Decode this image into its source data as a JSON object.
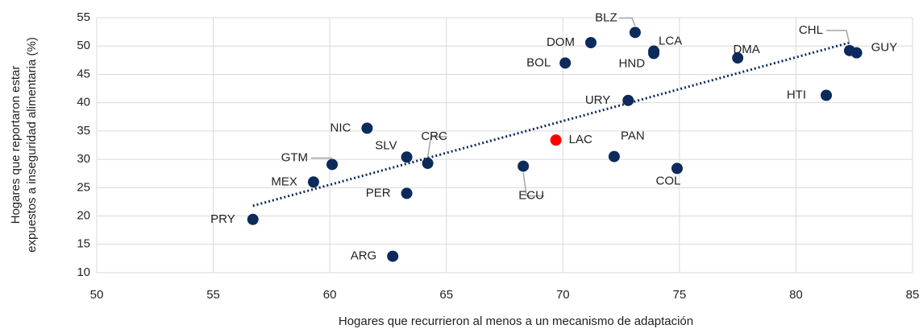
{
  "chart_data": {
    "type": "scatter",
    "xlabel": "Hogares que recurrieron al menos a un mecanismo de adaptación",
    "ylabel": [
      "Hogares que reportaron estar",
      "expuestos a inseguridad alimentaria (%)"
    ],
    "series": [
      {
        "labels": [
          "PRY",
          "ARG",
          "MEX",
          "GTM",
          "NIC",
          "SLV",
          "PER",
          "CRC",
          "ECU",
          "LAC",
          "BOL",
          "DOM",
          "BLZ",
          "LCA",
          "HND",
          "URY",
          "PAN",
          "COL",
          "DMA",
          "HTI",
          "CHL",
          "GUY"
        ],
        "x": [
          56.7,
          62.7,
          59.3,
          60.1,
          61.6,
          63.3,
          63.3,
          64.2,
          68.3,
          69.7,
          70.1,
          71.2,
          73.1,
          73.9,
          73.9,
          72.8,
          72.2,
          74.9,
          77.5,
          81.3,
          82.3,
          82.6
        ],
        "values": [
          19.4,
          12.9,
          26.0,
          29.1,
          35.5,
          30.4,
          24.0,
          29.3,
          28.8,
          33.4,
          47.0,
          50.6,
          52.4,
          49.1,
          48.7,
          40.4,
          30.5,
          28.4,
          47.9,
          41.3,
          49.2,
          48.8
        ],
        "colors": [
          "#0c2a5b",
          "#0c2a5b",
          "#0c2a5b",
          "#0c2a5b",
          "#0c2a5b",
          "#0c2a5b",
          "#0c2a5b",
          "#0c2a5b",
          "#0c2a5b",
          "#ff0000",
          "#0c2a5b",
          "#0c2a5b",
          "#0c2a5b",
          "#0c2a5b",
          "#0c2a5b",
          "#0c2a5b",
          "#0c2a5b",
          "#0c2a5b",
          "#0c2a5b",
          "#0c2a5b",
          "#0c2a5b",
          "#0c2a5b"
        ]
      }
    ],
    "trendline": {
      "x": [
        56.7,
        82.3
      ],
      "values": [
        21.8,
        50.6
      ],
      "color": "#0c2a5b"
    },
    "xlim": [
      50,
      85
    ],
    "xticks": [
      50,
      55,
      60,
      65,
      70,
      75,
      80,
      85
    ],
    "ylim": [
      10,
      55
    ],
    "yticks": [
      10,
      15,
      20,
      25,
      30,
      35,
      40,
      45,
      50,
      55
    ],
    "grid": true
  }
}
